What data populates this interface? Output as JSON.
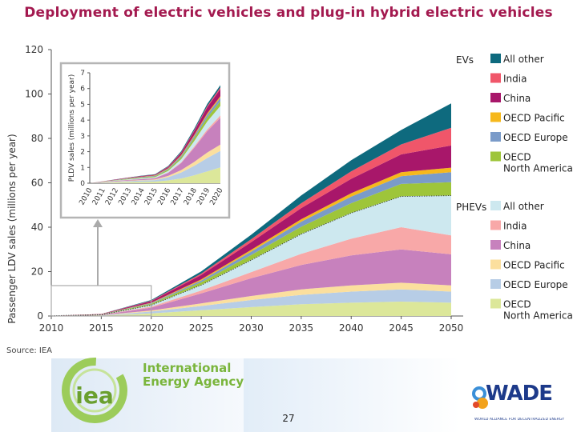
{
  "title": "Deployment of electric vehicles and plug-in hybrid electric vehicles",
  "source": "Source: IEA",
  "page_number": "27",
  "logos": {
    "iea_mark": "iea",
    "iea_name_line1": "International",
    "iea_name_line2": "Energy Agency",
    "wade_word": "WADE",
    "wade_sub": "WORLD ALLIANCE FOR DECENTRALIZED ENERGY"
  },
  "colors": {
    "title": "#a3194f",
    "ev_all_other": "#0e6a7e",
    "ev_india": "#f0566a",
    "ev_china": "#a8176a",
    "ev_oecd_pacific": "#f6b81c",
    "ev_oecd_europe": "#7a9bc9",
    "ev_oecd_north_america": "#9ec53a",
    "phev_all_other": "#cde8ef",
    "phev_india": "#f8a8a8",
    "phev_china": "#c781bd",
    "phev_oecd_pacific": "#fbdf9e",
    "phev_oecd_europe": "#b7cde6",
    "phev_oecd_north_america": "#dce79a"
  },
  "chart_data": [
    {
      "type": "area",
      "stacked": true,
      "title": "Deployment of electric vehicles and plug-in hybrid electric vehicles",
      "xlabel": "",
      "ylabel": "Passenger LDV sales (millions per year)",
      "x": [
        2010,
        2015,
        2020,
        2025,
        2030,
        2035,
        2040,
        2045,
        2050
      ],
      "xlim": [
        2010,
        2050
      ],
      "ylim": [
        0,
        120
      ],
      "yticks": [
        0,
        20,
        40,
        60,
        80,
        100,
        120
      ],
      "legend_groups": [
        {
          "group": "EVs",
          "entries": [
            "All other",
            "India",
            "China",
            "OECD Pacific",
            "OECD Europe",
            "OECD North America"
          ]
        },
        {
          "group": "PHEVs",
          "entries": [
            "All other",
            "India",
            "China",
            "OECD Pacific",
            "OECD Europe",
            "OECD North America"
          ]
        }
      ],
      "series": [
        {
          "name": "PHEVs OECD North America",
          "color_key": "phev_oecd_north_america",
          "values": [
            0,
            0.2,
            1.2,
            2.6,
            4.0,
            5.3,
            6.0,
            6.5,
            6.0
          ]
        },
        {
          "name": "PHEVs OECD Europe",
          "color_key": "phev_oecd_europe",
          "values": [
            0,
            0.1,
            0.8,
            1.9,
            3.2,
            4.2,
            5.0,
            5.5,
            5.0
          ]
        },
        {
          "name": "PHEVs OECD Pacific",
          "color_key": "phev_oecd_pacific",
          "values": [
            0,
            0.1,
            0.5,
            1.2,
            1.8,
            2.5,
            2.8,
            3.0,
            2.8
          ]
        },
        {
          "name": "PHEVs China",
          "color_key": "phev_china",
          "values": [
            0,
            0.1,
            1.3,
            4.5,
            8.0,
            11.0,
            13.5,
            15.0,
            14.0
          ]
        },
        {
          "name": "PHEVs India",
          "color_key": "phev_india",
          "values": [
            0,
            0.05,
            0.4,
            1.3,
            2.8,
            5.0,
            7.5,
            10.0,
            8.5
          ]
        },
        {
          "name": "PHEVs All other",
          "color_key": "phev_all_other",
          "values": [
            0,
            0.05,
            0.8,
            2.5,
            5.5,
            9.0,
            11.7,
            14.0,
            18.0
          ]
        },
        {
          "name": "EVs OECD North America",
          "color_key": "ev_oecd_north_america",
          "values": [
            0,
            0.1,
            0.5,
            1.2,
            2.2,
            3.2,
            4.3,
            5.5,
            6.0
          ]
        },
        {
          "name": "EVs OECD Europe",
          "color_key": "ev_oecd_europe",
          "values": [
            0,
            0.05,
            0.3,
            0.8,
            1.5,
            2.3,
            3.0,
            3.5,
            4.5
          ]
        },
        {
          "name": "EVs OECD Pacific",
          "color_key": "ev_oecd_pacific",
          "values": [
            0,
            0.05,
            0.2,
            0.5,
            0.8,
            1.1,
            1.5,
            1.8,
            2.0
          ]
        },
        {
          "name": "EVs China",
          "color_key": "ev_china",
          "values": [
            0,
            0.1,
            0.7,
            2.0,
            3.5,
            5.0,
            6.5,
            8.0,
            10.0
          ]
        },
        {
          "name": "EVs India",
          "color_key": "ev_india",
          "values": [
            0,
            0.02,
            0.2,
            0.6,
            1.3,
            2.2,
            3.4,
            4.5,
            8.0
          ]
        },
        {
          "name": "EVs All other",
          "color_key": "ev_all_other",
          "values": [
            0,
            0.03,
            0.3,
            1.0,
            2.0,
            3.5,
            5.0,
            6.5,
            11.0
          ]
        }
      ],
      "phev_total_dotted_line": true
    },
    {
      "type": "area",
      "stacked": true,
      "title": "",
      "ylabel": "PLDV sales (millions per year)",
      "x": [
        2010,
        2011,
        2012,
        2013,
        2014,
        2015,
        2016,
        2017,
        2018,
        2019,
        2020
      ],
      "x_tick_labels": [
        "2010",
        "2011",
        "2012",
        "2013",
        "2014",
        "2015",
        "2016",
        "2017",
        "2018",
        "2019",
        "2020"
      ],
      "ylim": [
        0,
        7
      ],
      "yticks": [
        0,
        1,
        2,
        3,
        4,
        5,
        6,
        7
      ],
      "series": [
        {
          "name": "PHEVs OECD North America",
          "color_key": "phev_oecd_north_america",
          "values": [
            0,
            0.02,
            0.05,
            0.07,
            0.09,
            0.1,
            0.18,
            0.3,
            0.5,
            0.75,
            1.0
          ]
        },
        {
          "name": "PHEVs OECD Europe",
          "color_key": "phev_oecd_europe",
          "values": [
            0,
            0.02,
            0.04,
            0.06,
            0.08,
            0.1,
            0.2,
            0.38,
            0.6,
            0.85,
            1.05
          ]
        },
        {
          "name": "PHEVs OECD Pacific",
          "color_key": "phev_oecd_pacific",
          "values": [
            0,
            0.01,
            0.02,
            0.03,
            0.03,
            0.04,
            0.08,
            0.15,
            0.25,
            0.35,
            0.4
          ]
        },
        {
          "name": "PHEVs China",
          "color_key": "phev_china",
          "values": [
            0,
            0.02,
            0.04,
            0.05,
            0.06,
            0.08,
            0.2,
            0.45,
            0.9,
            1.35,
            1.7
          ]
        },
        {
          "name": "PHEVs India",
          "color_key": "phev_india",
          "values": [
            0,
            0.0,
            0.0,
            0.01,
            0.01,
            0.01,
            0.02,
            0.04,
            0.08,
            0.12,
            0.15
          ]
        },
        {
          "name": "PHEVs All other",
          "color_key": "phev_all_other",
          "values": [
            0,
            0.01,
            0.02,
            0.03,
            0.04,
            0.05,
            0.1,
            0.2,
            0.35,
            0.5,
            0.6
          ]
        },
        {
          "name": "EVs OECD North America",
          "color_key": "ev_oecd_north_america",
          "values": [
            0,
            0.01,
            0.02,
            0.03,
            0.04,
            0.05,
            0.08,
            0.12,
            0.18,
            0.25,
            0.3
          ]
        },
        {
          "name": "EVs OECD Europe",
          "color_key": "ev_oecd_europe",
          "values": [
            0,
            0.01,
            0.02,
            0.03,
            0.04,
            0.04,
            0.06,
            0.09,
            0.13,
            0.18,
            0.22
          ]
        },
        {
          "name": "EVs OECD Pacific",
          "color_key": "ev_oecd_pacific",
          "values": [
            0,
            0.01,
            0.01,
            0.02,
            0.02,
            0.02,
            0.03,
            0.05,
            0.07,
            0.09,
            0.1
          ]
        },
        {
          "name": "EVs China",
          "color_key": "ev_china",
          "values": [
            0,
            0.01,
            0.02,
            0.03,
            0.04,
            0.05,
            0.08,
            0.15,
            0.25,
            0.38,
            0.45
          ]
        },
        {
          "name": "EVs India",
          "color_key": "ev_india",
          "values": [
            0,
            0.0,
            0.0,
            0.0,
            0.01,
            0.01,
            0.02,
            0.03,
            0.05,
            0.08,
            0.1
          ]
        },
        {
          "name": "EVs All other",
          "color_key": "ev_all_other",
          "values": [
            0,
            0.0,
            0.01,
            0.01,
            0.02,
            0.02,
            0.04,
            0.07,
            0.1,
            0.13,
            0.15
          ]
        }
      ]
    }
  ]
}
